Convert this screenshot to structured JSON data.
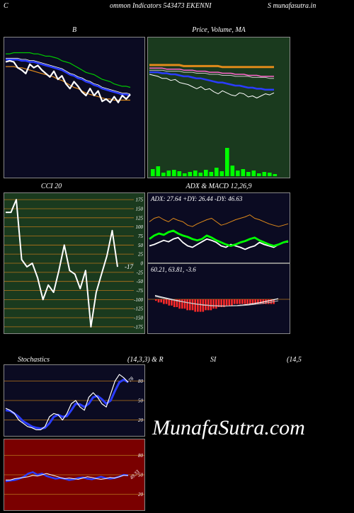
{
  "header": {
    "left_char": "C",
    "center_text": "ommon  Indicators 543473 EKENNI",
    "right_text": "S munafasutra.in"
  },
  "watermark": "MunafaSutra.com",
  "colors": {
    "panel_bb": "#0b0b22",
    "panel_green": "#1a3a1e",
    "panel_red": "#7a0000",
    "ma_orange": "#e08a1a",
    "ma_green": "#00c800",
    "ma_blue": "#2a3cff",
    "grid_orange": "#b7741a",
    "bright_green": "#00ff00"
  },
  "chart_data": [
    {
      "id": "bollinger",
      "type": "line",
      "title": "B",
      "series": [
        {
          "values": [
            95,
            96,
            95,
            90,
            88,
            85,
            93,
            90,
            92,
            88,
            85,
            82,
            87,
            80,
            83,
            76,
            72,
            78,
            74,
            69,
            66,
            72,
            66,
            70,
            61,
            63,
            60,
            65,
            60,
            66,
            63,
            67
          ]
        },
        {
          "values": [
            97,
            97,
            97,
            97,
            96,
            96,
            95,
            95,
            94,
            93,
            92,
            91,
            90,
            89,
            88,
            86,
            84,
            83,
            81,
            80,
            78,
            77,
            75,
            74,
            72,
            71,
            70,
            69,
            68,
            67,
            67,
            66
          ]
        },
        {
          "values": [
            102,
            102,
            103,
            103,
            103,
            103,
            103,
            102,
            102,
            101,
            100,
            100,
            99,
            98,
            96,
            95,
            94,
            92,
            90,
            88,
            86,
            85,
            84,
            82,
            80,
            79,
            78,
            76,
            75,
            74,
            74,
            73
          ]
        },
        {
          "values": [
            91,
            91,
            91,
            90,
            90,
            89,
            88,
            87,
            86,
            85,
            84,
            83,
            82,
            80,
            79,
            77,
            75,
            73,
            72,
            70,
            68,
            67,
            66,
            65,
            64,
            63,
            63,
            62,
            62,
            62,
            62,
            62
          ]
        }
      ]
    },
    {
      "id": "price_ma",
      "type": "line",
      "title": "Price,  Volume,  MA",
      "series": [
        {
          "values": [
            88,
            87,
            86,
            84,
            84,
            82,
            83,
            80,
            79,
            78,
            76,
            74,
            76,
            73,
            74,
            71,
            69,
            72,
            70,
            68,
            67,
            70,
            69,
            66,
            67,
            65,
            67,
            69,
            68,
            70
          ]
        },
        {
          "values": [
            90,
            90,
            90,
            89,
            89,
            88,
            88,
            87,
            86,
            86,
            85,
            84,
            84,
            83,
            82,
            81,
            80,
            80,
            79,
            78,
            77,
            77,
            76,
            75,
            75,
            74,
            74,
            73,
            73,
            73
          ]
        },
        {
          "values": [
            94,
            94,
            94,
            94,
            93,
            93,
            93,
            93,
            92,
            92,
            92,
            91,
            91,
            91,
            90,
            90,
            90,
            89,
            89,
            89,
            88,
            88,
            88,
            87,
            87,
            87,
            86,
            86,
            86,
            86
          ]
        },
        {
          "values": [
            97,
            97,
            97,
            97,
            97,
            97,
            97,
            97,
            96,
            96,
            96,
            96,
            96,
            96,
            96,
            96,
            96,
            95,
            95,
            95,
            95,
            95,
            95,
            95,
            95,
            95,
            95,
            95,
            95,
            95
          ]
        },
        {
          "values": [
            92,
            92,
            92,
            92,
            91,
            91,
            91,
            91,
            90,
            90,
            90,
            89,
            89,
            89,
            88,
            88,
            88,
            87,
            87,
            87,
            86,
            86,
            86,
            86,
            85,
            85,
            85,
            85,
            84,
            84
          ]
        }
      ],
      "volume": [
        10,
        14,
        5,
        8,
        9,
        7,
        4,
        6,
        8,
        5,
        9,
        6,
        12,
        7,
        40,
        15,
        8,
        10,
        6,
        8,
        4,
        6,
        5,
        3
      ]
    },
    {
      "id": "cci",
      "type": "line",
      "title": "CCI 20",
      "last_label": "-17",
      "yticks": [
        175,
        150,
        125,
        100,
        75,
        50,
        25,
        0,
        -25,
        -50,
        -75,
        -100,
        -125,
        -150,
        -175
      ],
      "ylim": [
        -185,
        185
      ],
      "series": [
        {
          "values": [
            140,
            140,
            175,
            10,
            -10,
            0,
            -40,
            -100,
            -60,
            -80,
            -20,
            50,
            -20,
            -30,
            -70,
            -20,
            -175,
            -80,
            -30,
            20,
            90,
            -10
          ]
        }
      ]
    },
    {
      "id": "adx",
      "type": "line",
      "title": "ADX  & MACD 12,26,9",
      "label": "ADX: 27.64  +DY: 26.44  -DY: 46.63",
      "series": [
        {
          "values": [
            30,
            35,
            38,
            36,
            40,
            42,
            38,
            35,
            33,
            30,
            28,
            30,
            35,
            32,
            28,
            25,
            22,
            20,
            22,
            25,
            27,
            30,
            32,
            28,
            25,
            22,
            20,
            22,
            25,
            27
          ]
        },
        {
          "values": [
            55,
            60,
            62,
            58,
            55,
            60,
            57,
            55,
            50,
            48,
            52,
            55,
            58,
            60,
            55,
            50,
            52,
            55,
            58,
            60,
            62,
            65,
            60,
            58,
            55,
            52,
            50,
            48,
            50,
            52
          ]
        },
        {
          "values": [
            20,
            22,
            25,
            28,
            26,
            30,
            32,
            25,
            20,
            18,
            22,
            26,
            30,
            28,
            25,
            20,
            18,
            22,
            20,
            18,
            15,
            18,
            20,
            25,
            22,
            20,
            18,
            22,
            25,
            26
          ]
        }
      ]
    },
    {
      "id": "macd",
      "type": "bar",
      "label": "60.21,  63.81,  -3.6",
      "values": [
        -1,
        -2,
        -2,
        -3,
        -3,
        -4,
        -4,
        -5,
        -5,
        -6,
        -6,
        -6,
        -7,
        -7,
        -7,
        -8,
        -8,
        -8,
        -8,
        -7,
        -7,
        -7,
        -6,
        -6,
        -5,
        -5,
        -5,
        -4,
        -4,
        -4,
        -3,
        -3,
        -3,
        -3,
        -3,
        -3,
        -3,
        -3,
        -3,
        -3,
        -3,
        -3,
        -3,
        -3,
        -3,
        -3
      ]
    },
    {
      "id": "stochastics",
      "type": "line",
      "title": "Stochastics",
      "params": "(14,3,3) & R",
      "last_label": "78",
      "yticks": [
        80,
        50,
        20
      ],
      "ylim": [
        0,
        100
      ],
      "series": [
        {
          "values": [
            38,
            35,
            30,
            20,
            15,
            10,
            8,
            5,
            5,
            10,
            25,
            30,
            28,
            20,
            30,
            45,
            50,
            40,
            35,
            55,
            62,
            55,
            45,
            40,
            60,
            80,
            90,
            85,
            78
          ]
        },
        {
          "values": [
            35,
            34,
            30,
            25,
            18,
            14,
            10,
            8,
            7,
            8,
            15,
            25,
            28,
            25,
            26,
            35,
            45,
            44,
            40,
            45,
            55,
            57,
            52,
            45,
            50,
            65,
            78,
            82,
            78
          ]
        }
      ]
    },
    {
      "id": "rsi",
      "type": "line",
      "title": "SI",
      "params": "(14,5",
      "last_label": "49.33",
      "yticks": [
        80,
        50,
        20
      ],
      "ylim": [
        0,
        100
      ],
      "series": [
        {
          "values": [
            42,
            42,
            44,
            45,
            46,
            47,
            49,
            48,
            50,
            52,
            50,
            48,
            46,
            44,
            45,
            44,
            43,
            45,
            47,
            46,
            44,
            43,
            44,
            46,
            45,
            47,
            49,
            49
          ]
        },
        {
          "values": [
            40,
            41,
            42,
            44,
            47,
            52,
            54,
            50,
            52,
            48,
            46,
            44,
            45,
            44,
            42,
            43,
            45,
            46,
            44,
            43,
            45,
            47,
            45,
            44,
            45,
            47,
            50,
            49
          ]
        }
      ]
    }
  ]
}
